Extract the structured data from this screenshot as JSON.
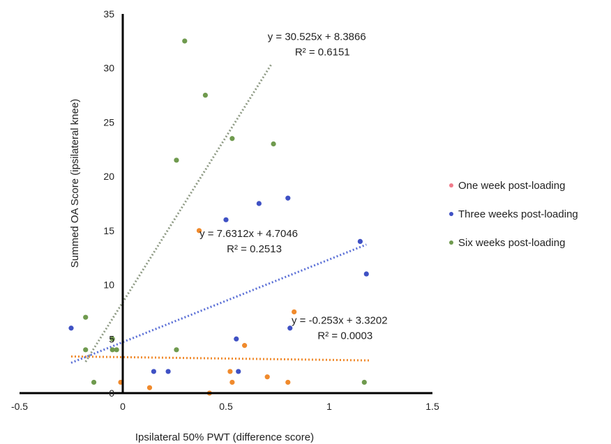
{
  "chart_data": {
    "type": "scatter",
    "xlabel": "Ipsilateral 50% PWT (difference score)",
    "ylabel": "Summed OA Score (ipsilateral knee)",
    "xlim": [
      -0.5,
      1.5
    ],
    "ylim": [
      0,
      35
    ],
    "xticks": [
      "-0.5",
      "0",
      "0.5",
      "1",
      "1.5"
    ],
    "yticks": [
      "0",
      "5",
      "10",
      "15",
      "20",
      "25",
      "30",
      "35"
    ],
    "grid": false,
    "legend_position": "right",
    "series": [
      {
        "name": "One week post-loading",
        "legend_color": "#f07a8a",
        "color": "#f08a2c",
        "points": [
          [
            -0.01,
            1
          ],
          [
            0.13,
            0.5
          ],
          [
            0.37,
            15
          ],
          [
            0.42,
            0
          ],
          [
            0.52,
            2
          ],
          [
            0.53,
            1
          ],
          [
            0.59,
            4.4
          ],
          [
            0.7,
            1.5
          ],
          [
            0.8,
            1
          ],
          [
            0.83,
            7.5
          ]
        ],
        "trendline": {
          "slope": -0.253,
          "intercept": 3.3202,
          "x_range": [
            -0.25,
            1.2
          ],
          "color": "#f08a2c"
        },
        "equation": "y = -0.253x + 3.3202",
        "r2": "R² = 0.0003"
      },
      {
        "name": "Three weeks post-loading",
        "legend_color": "#3f51c4",
        "color": "#3f51c4",
        "points": [
          [
            -0.25,
            6
          ],
          [
            0.15,
            2
          ],
          [
            0.22,
            2
          ],
          [
            0.5,
            16
          ],
          [
            0.55,
            5
          ],
          [
            0.56,
            2
          ],
          [
            0.66,
            17.5
          ],
          [
            0.8,
            18
          ],
          [
            0.81,
            6
          ],
          [
            1.15,
            14
          ],
          [
            1.18,
            11
          ]
        ],
        "trendline": {
          "slope": 7.6312,
          "intercept": 4.7046,
          "x_range": [
            -0.25,
            1.18
          ],
          "color": "#5a6fd6"
        },
        "equation": "y = 7.6312x + 4.7046",
        "r2": "R² = 0.2513"
      },
      {
        "name": "Six weeks post-loading",
        "legend_color": "#6f9a4e",
        "color": "#6f9a4e",
        "points": [
          [
            -0.18,
            7
          ],
          [
            -0.18,
            4
          ],
          [
            -0.14,
            1
          ],
          [
            -0.05,
            5
          ],
          [
            -0.05,
            4
          ],
          [
            -0.03,
            4
          ],
          [
            0.26,
            21.5
          ],
          [
            0.26,
            4
          ],
          [
            0.3,
            32.5
          ],
          [
            0.4,
            27.5
          ],
          [
            0.53,
            23.5
          ],
          [
            0.73,
            23
          ],
          [
            1.17,
            1
          ]
        ],
        "trendline": {
          "slope": 30.525,
          "intercept": 8.3866,
          "x_range": [
            -0.18,
            0.72
          ],
          "color": "#8e9a84"
        },
        "equation": "y = 30.525x + 8.3866",
        "r2": "R² = 0.6151"
      }
    ],
    "annotations": [
      {
        "series": 2,
        "x": 0.94,
        "y_top": 32.6
      },
      {
        "series": 1,
        "x": 0.61,
        "y_top": 14.4
      },
      {
        "series": 0,
        "x": 1.05,
        "y_top": 6.4
      }
    ]
  }
}
